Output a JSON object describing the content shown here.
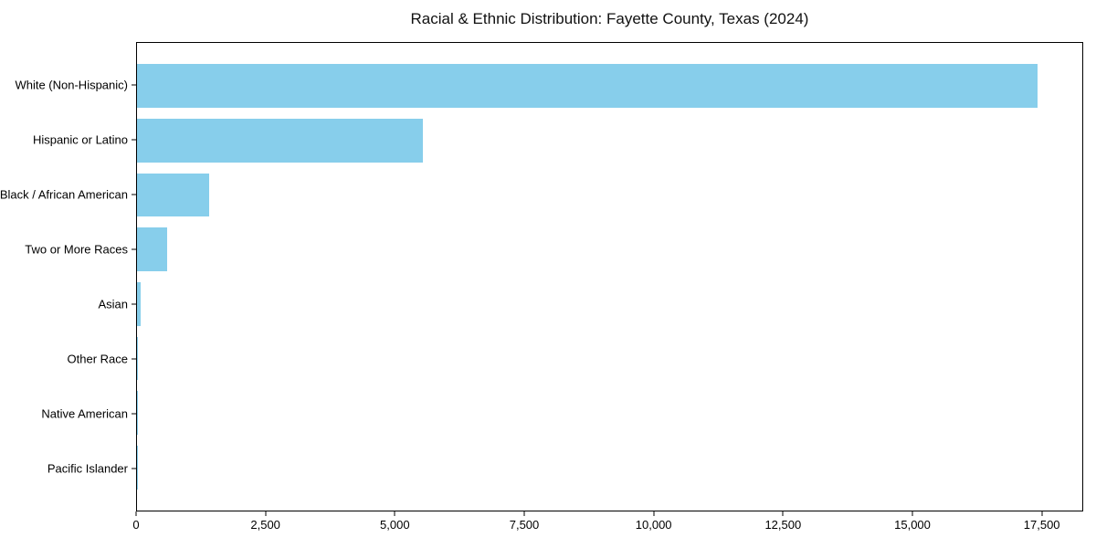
{
  "title": "Racial & Ethnic Distribution: Fayette County, Texas (2024)",
  "colors": {
    "bar": "#87CEEB",
    "axis": "#000000",
    "text": "#111111",
    "background": "#ffffff"
  },
  "chart_data": {
    "type": "bar",
    "orientation": "horizontal",
    "title": "Racial & Ethnic Distribution: Fayette County, Texas (2024)",
    "xlabel": "",
    "ylabel": "",
    "categories": [
      "White (Non-Hispanic)",
      "Hispanic or Latino",
      "Black / African American",
      "Two or More Races",
      "Asian",
      "Other Race",
      "Native American",
      "Pacific Islander"
    ],
    "values": [
      17430,
      5540,
      1390,
      580,
      75,
      20,
      8,
      3
    ],
    "xlim": [
      0,
      18300
    ],
    "x_ticks": [
      0,
      2500,
      5000,
      7500,
      10000,
      12500,
      15000,
      17500
    ],
    "x_tick_labels": [
      "0",
      "2,500",
      "5,000",
      "7,500",
      "10,000",
      "12,500",
      "15,000",
      "17,500"
    ],
    "grid": false,
    "legend": null,
    "bar_color": "#87CEEB"
  }
}
